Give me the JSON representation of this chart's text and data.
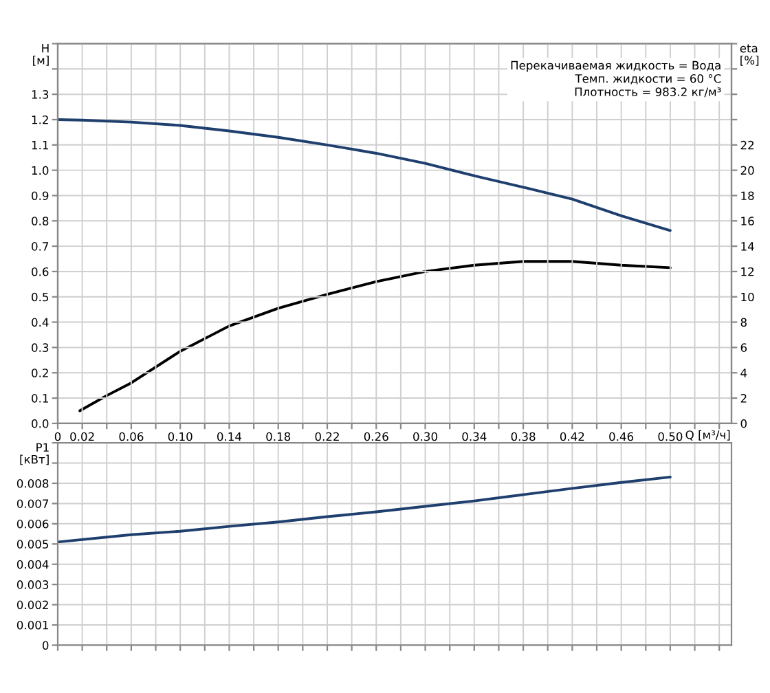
{
  "chart_data": [
    {
      "type": "line",
      "xlabel": "Q [м³/ч]",
      "ylabel": "H\n[м]",
      "y2label": "eta\n[%]",
      "annotations": [
        "Перекачиваемая жидкость = Вода\nТемп. жидкости = 60 °C\nПлотность = 983.2 кг/м³"
      ],
      "series": [
        {
          "color": "#1f3f6e",
          "x": [
            0,
            0.02,
            0.06,
            0.1,
            0.14,
            0.18,
            0.22,
            0.26,
            0.3,
            0.34,
            0.38,
            0.42,
            0.46,
            0.5
          ],
          "values": [
            1.2,
            1.198,
            1.19,
            1.177,
            1.155,
            1.13,
            1.1,
            1.067,
            1.027,
            0.978,
            0.933,
            0.886,
            0.82,
            0.762
          ]
        },
        {
          "color": "#000000",
          "axis": "y2",
          "x": [
            0.018,
            0.04,
            0.06,
            0.1,
            0.14,
            0.18,
            0.22,
            0.26,
            0.3,
            0.34,
            0.38,
            0.42,
            0.46,
            0.5
          ],
          "values": [
            1.0,
            2.2,
            3.2,
            5.7,
            7.7,
            9.1,
            10.2,
            11.2,
            12.0,
            12.5,
            12.8,
            12.8,
            12.5,
            12.3
          ]
        }
      ],
      "xlim": [
        0,
        0.55
      ],
      "xticks": [
        0,
        0.02,
        {
          "value": 0.04,
          "label": null
        },
        0.06,
        {
          "value": 0.08,
          "label": null
        },
        {
          "value": 0.1,
          "label": "0.10"
        },
        {
          "value": 0.12,
          "label": null
        },
        0.14,
        {
          "value": 0.16,
          "label": null
        },
        0.18,
        {
          "value": 0.2,
          "label": null
        },
        0.22,
        {
          "value": 0.24,
          "label": null
        },
        0.26,
        {
          "value": 0.28,
          "label": null
        },
        {
          "value": 0.3,
          "label": "0.30"
        },
        {
          "value": 0.32,
          "label": null
        },
        0.34,
        {
          "value": 0.36,
          "label": null
        },
        0.38,
        {
          "value": 0.4,
          "label": null
        },
        0.42,
        {
          "value": 0.44,
          "label": null
        },
        0.46,
        {
          "value": 0.48,
          "label": null
        },
        {
          "value": 0.5,
          "label": "0.50"
        },
        {
          "value": 0.52,
          "label": null
        },
        {
          "value": 0.54,
          "label": null
        }
      ],
      "ylim": [
        0,
        1.5
      ],
      "yticks": [
        {
          "value": 0,
          "label": "0.0"
        },
        0.1,
        0.2,
        0.3,
        0.4,
        0.5,
        0.6,
        0.7,
        0.8,
        0.9,
        {
          "value": 1.0,
          "label": "1.0"
        },
        1.1,
        1.2,
        1.3,
        {
          "value": 1.4,
          "label": null
        },
        {
          "value": 1.5,
          "label": null
        }
      ],
      "y2lim": [
        0,
        30
      ],
      "y2ticks": [
        0,
        2,
        4,
        6,
        8,
        10,
        12,
        14,
        16,
        18,
        20,
        22,
        {
          "value": 24,
          "label": null
        },
        {
          "value": 26,
          "label": null
        },
        {
          "value": 28,
          "label": null
        },
        {
          "value": 30,
          "label": null
        }
      ],
      "grid": true
    },
    {
      "type": "line",
      "ylabel": "P1\n[кВт]",
      "tick_labels": "y",
      "series": [
        {
          "color": "#1f3f6e",
          "x": [
            0,
            0.06,
            0.1,
            0.14,
            0.18,
            0.22,
            0.26,
            0.3,
            0.34,
            0.38,
            0.42,
            0.46,
            0.5
          ],
          "values": [
            0.0051,
            0.00546,
            0.00563,
            0.00587,
            0.00609,
            0.00635,
            0.00659,
            0.00686,
            0.00713,
            0.00744,
            0.00775,
            0.00804,
            0.00831
          ]
        }
      ],
      "xlim": [
        0,
        0.55
      ],
      "xticks": [
        0,
        0.02,
        0.04,
        0.06,
        0.08,
        0.1,
        0.12,
        0.14,
        0.16,
        0.18,
        0.2,
        0.22,
        0.24,
        0.26,
        0.28,
        0.3,
        0.32,
        0.34,
        0.36,
        0.38,
        0.4,
        0.42,
        0.44,
        0.46,
        0.48,
        0.5,
        0.52,
        0.54
      ],
      "ylim": [
        0,
        0.01
      ],
      "yticks": [
        0,
        0.001,
        0.002,
        0.003,
        0.004,
        0.005,
        0.006,
        0.007,
        0.008,
        {
          "value": 0.009,
          "label": null
        },
        {
          "value": 0.01,
          "label": null
        }
      ],
      "grid": true
    }
  ]
}
